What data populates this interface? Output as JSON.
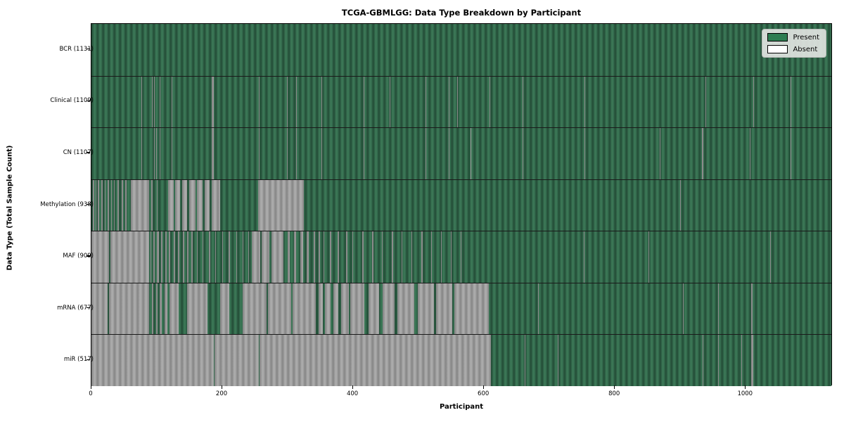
{
  "title": "TCGA-GBMLGG: Data Type Breakdown by Participant",
  "axes": {
    "xlabel": "Participant",
    "ylabel": "Data Type (Total Sample Count)"
  },
  "legend": {
    "position": "upper right",
    "items": [
      {
        "label": "Present",
        "color": "#2e7d52"
      },
      {
        "label": "Absent",
        "color": "#ffffff"
      }
    ]
  },
  "colors": {
    "present_fill": "#346c4e",
    "present_edge": "#26513a",
    "absent_fill": "#a1a1a1",
    "absent_edge": "#8a8a8a",
    "spine": "#000000",
    "background": "#ffffff"
  },
  "chart_data": {
    "type": "heatmap",
    "title": "TCGA-GBMLGG: Data Type Breakdown by Participant",
    "xlabel": "Participant",
    "ylabel": "Data Type (Total Sample Count)",
    "legend_entries": [
      "Present",
      "Absent"
    ],
    "legend_position": "upper right",
    "grid": false,
    "n_participants": 1131,
    "x_max": 1133,
    "x_ticks": [
      0,
      200,
      400,
      600,
      800,
      1000
    ],
    "rows": [
      {
        "label": "BCR (1131)",
        "name": "BCR",
        "present_count": 1131,
        "absent_ranges": []
      },
      {
        "label": "Clinical (1109)",
        "name": "Clinical",
        "present_count": 1109,
        "absent_ranges": [
          [
            77,
            78
          ],
          [
            93,
            94
          ],
          [
            96,
            97
          ],
          [
            105,
            106
          ],
          [
            123,
            124
          ],
          [
            184,
            187
          ],
          [
            256,
            257
          ],
          [
            299,
            300
          ],
          [
            313,
            314
          ],
          [
            352,
            353
          ],
          [
            417,
            418
          ],
          [
            457,
            458
          ],
          [
            512,
            513
          ],
          [
            547,
            548
          ],
          [
            560,
            561
          ],
          [
            610,
            611
          ],
          [
            660,
            661
          ],
          [
            755,
            756
          ],
          [
            940,
            941
          ],
          [
            1013,
            1014
          ],
          [
            1070,
            1071
          ]
        ]
      },
      {
        "label": "CN (1107)",
        "name": "CN",
        "present_count": 1107,
        "absent_ranges": [
          [
            77,
            78
          ],
          [
            96,
            97
          ],
          [
            99,
            100
          ],
          [
            105,
            106
          ],
          [
            123,
            124
          ],
          [
            184,
            187
          ],
          [
            256,
            257
          ],
          [
            299,
            300
          ],
          [
            313,
            314
          ],
          [
            352,
            353
          ],
          [
            417,
            418
          ],
          [
            512,
            513
          ],
          [
            547,
            548
          ],
          [
            580,
            581
          ],
          [
            660,
            661
          ],
          [
            755,
            756
          ],
          [
            870,
            871
          ],
          [
            935,
            937
          ],
          [
            1008,
            1009
          ],
          [
            1070,
            1071
          ]
        ]
      },
      {
        "label": "Methylation (938)",
        "name": "Methylation",
        "present_count": 938,
        "absent_ranges": [
          [
            2,
            4
          ],
          [
            6,
            8
          ],
          [
            10,
            12
          ],
          [
            15,
            17
          ],
          [
            20,
            22
          ],
          [
            25,
            27
          ],
          [
            30,
            31
          ],
          [
            34,
            36
          ],
          [
            40,
            42
          ],
          [
            46,
            48
          ],
          [
            52,
            54
          ],
          [
            60,
            88
          ],
          [
            92,
            94
          ],
          [
            100,
            101
          ],
          [
            117,
            126
          ],
          [
            128,
            136
          ],
          [
            139,
            147
          ],
          [
            150,
            159
          ],
          [
            162,
            170
          ],
          [
            173,
            181
          ],
          [
            184,
            197
          ],
          [
            255,
            325
          ],
          [
            901,
            902
          ]
        ]
      },
      {
        "label": "MAF (909)",
        "name": "MAF",
        "present_count": 909,
        "absent_ranges": [
          [
            0,
            27
          ],
          [
            29,
            88
          ],
          [
            90,
            92
          ],
          [
            95,
            97
          ],
          [
            100,
            103
          ],
          [
            107,
            109
          ],
          [
            113,
            115
          ],
          [
            119,
            121
          ],
          [
            126,
            128
          ],
          [
            133,
            135
          ],
          [
            140,
            142
          ],
          [
            147,
            149
          ],
          [
            153,
            155
          ],
          [
            162,
            163
          ],
          [
            170,
            171
          ],
          [
            180,
            182
          ],
          [
            190,
            191
          ],
          [
            200,
            201
          ],
          [
            210,
            212
          ],
          [
            222,
            223
          ],
          [
            232,
            233
          ],
          [
            240,
            241
          ],
          [
            246,
            258
          ],
          [
            261,
            272
          ],
          [
            276,
            294
          ],
          [
            300,
            304
          ],
          [
            310,
            313
          ],
          [
            320,
            324
          ],
          [
            330,
            333
          ],
          [
            340,
            343
          ],
          [
            348,
            350
          ],
          [
            355,
            357
          ],
          [
            365,
            367
          ],
          [
            377,
            379
          ],
          [
            390,
            392
          ],
          [
            400,
            401
          ],
          [
            415,
            417
          ],
          [
            430,
            432
          ],
          [
            445,
            446
          ],
          [
            460,
            462
          ],
          [
            475,
            476
          ],
          [
            490,
            491
          ],
          [
            505,
            507
          ],
          [
            520,
            521
          ],
          [
            535,
            536
          ],
          [
            550,
            551
          ],
          [
            565,
            566
          ],
          [
            754,
            755
          ],
          [
            853,
            854
          ],
          [
            1039,
            1040
          ]
        ]
      },
      {
        "label": "mRNA (677)",
        "name": "mRNA",
        "present_count": 677,
        "absent_ranges": [
          [
            0,
            25
          ],
          [
            27,
            88
          ],
          [
            93,
            95
          ],
          [
            99,
            101
          ],
          [
            105,
            108
          ],
          [
            112,
            116
          ],
          [
            120,
            134
          ],
          [
            146,
            178
          ],
          [
            197,
            211
          ],
          [
            232,
            268
          ],
          [
            270,
            306
          ],
          [
            308,
            344
          ],
          [
            348,
            354
          ],
          [
            358,
            366
          ],
          [
            370,
            378
          ],
          [
            382,
            394
          ],
          [
            396,
            418
          ],
          [
            424,
            440
          ],
          [
            446,
            464
          ],
          [
            468,
            494
          ],
          [
            500,
            524
          ],
          [
            528,
            552
          ],
          [
            556,
            608
          ],
          [
            684,
            685
          ],
          [
            906,
            907
          ],
          [
            960,
            961
          ],
          [
            1010,
            1012
          ]
        ]
      },
      {
        "label": "miR (517)",
        "name": "miR",
        "present_count": 517,
        "absent_ranges": [
          [
            0,
            187
          ],
          [
            188,
            256
          ],
          [
            257,
            612
          ],
          [
            663,
            664
          ],
          [
            714,
            715
          ],
          [
            936,
            937
          ],
          [
            960,
            961
          ],
          [
            995,
            996
          ],
          [
            1010,
            1013
          ]
        ]
      }
    ]
  }
}
